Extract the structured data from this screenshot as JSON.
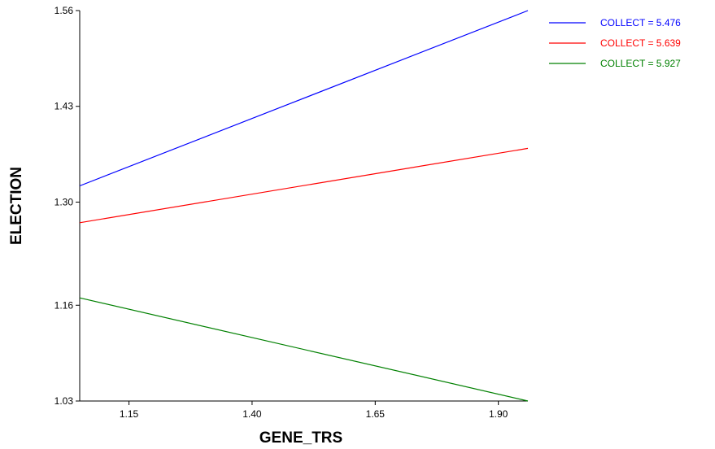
{
  "chart_data": {
    "type": "line",
    "xlabel": "GENE_TRS",
    "ylabel": "ELECTION",
    "xlim": [
      1.05,
      1.96
    ],
    "ylim": [
      1.03,
      1.56
    ],
    "x_ticks": [
      "1.15",
      "1.40",
      "1.65",
      "1.90"
    ],
    "y_ticks": [
      "1.03",
      "1.16",
      "1.30",
      "1.43",
      "1.56"
    ],
    "grid": false,
    "legend_position": "top-right-outside",
    "series": [
      {
        "name": "COLLECT = 5.476",
        "color": "#0000ff",
        "x": [
          1.05,
          1.96
        ],
        "y": [
          1.322,
          1.56
        ]
      },
      {
        "name": "COLLECT = 5.639",
        "color": "#ff0000",
        "x": [
          1.05,
          1.96
        ],
        "y": [
          1.272,
          1.373
        ]
      },
      {
        "name": "COLLECT = 5.927",
        "color": "#008000",
        "x": [
          1.05,
          1.96
        ],
        "y": [
          1.17,
          1.03
        ]
      }
    ]
  }
}
